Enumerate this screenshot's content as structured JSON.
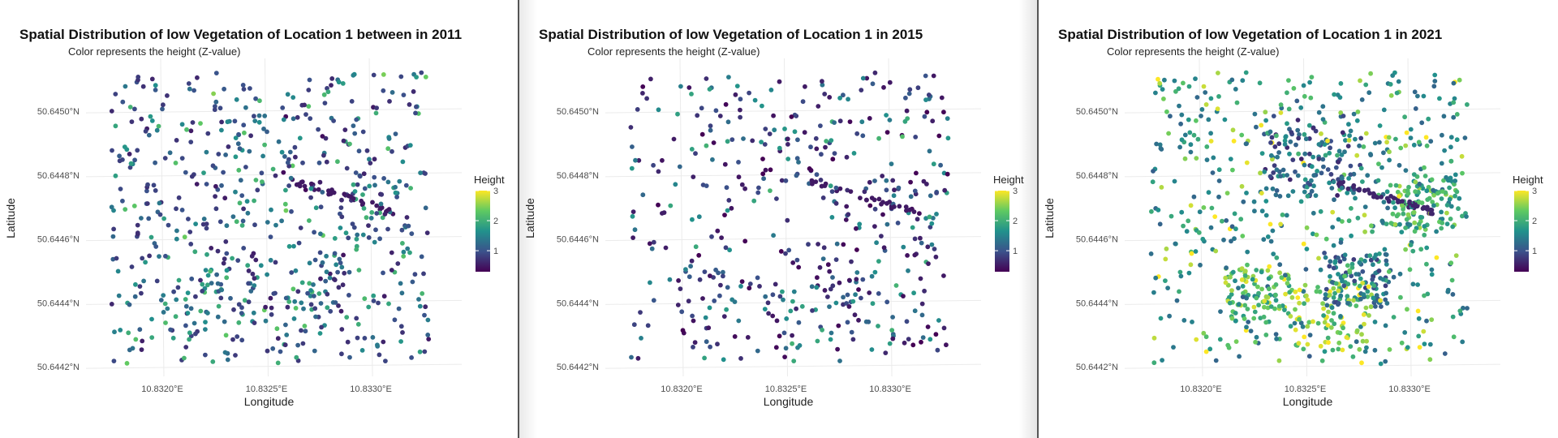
{
  "chart_data": [
    {
      "type": "scatter",
      "title": "Spatial Distribution of low Vegetation of Location 1 between in 2011",
      "subtitle": "Color represents the height (Z-value)",
      "xlabel": "Longitude",
      "ylabel": "Latitude",
      "x_ticks": [
        "10.8320°E",
        "10.8325°E",
        "10.8330°E"
      ],
      "y_ticks": [
        "50.6450°N",
        "50.6448°N",
        "50.6446°N",
        "50.6444°N",
        "50.6442°N"
      ],
      "legend": {
        "title": "Height",
        "ticks": [
          "3",
          "2",
          "1"
        ],
        "placement": "right"
      },
      "grid": true,
      "xlim": [
        10.83165,
        10.83342
      ],
      "ylim": [
        50.64418,
        50.64515
      ],
      "colormap": [
        "#440154",
        "#3b528b",
        "#21918c",
        "#5ec962",
        "#fde725"
      ],
      "color_range": [
        0.3,
        3.0
      ],
      "point_count": 700
    },
    {
      "type": "scatter",
      "title": "Spatial Distribution of low Vegetation of Location 1 in 2015",
      "subtitle": "Color represents the height (Z-value)",
      "xlabel": "Longitude",
      "ylabel": "Latitude",
      "x_ticks": [
        "10.8320°E",
        "10.8325°E",
        "10.8330°E"
      ],
      "y_ticks": [
        "50.6450°N",
        "50.6448°N",
        "50.6446°N",
        "50.6444°N",
        "50.6442°N"
      ],
      "legend": {
        "title": "Height",
        "ticks": [
          "3",
          "2",
          "1"
        ],
        "placement": "right"
      },
      "grid": true,
      "xlim": [
        10.83165,
        10.83342
      ],
      "ylim": [
        50.64418,
        50.64515
      ],
      "colormap": [
        "#440154",
        "#3b528b",
        "#21918c",
        "#5ec962",
        "#fde725"
      ],
      "color_range": [
        0.3,
        3.0
      ],
      "point_count": 500
    },
    {
      "type": "scatter",
      "title": "Spatial Distribution of low Vegetation of Location 1 in 2021",
      "subtitle": "Color represents the height (Z-value)",
      "xlabel": "Longitude",
      "ylabel": "Latitude",
      "x_ticks": [
        "10.8320°E",
        "10.8325°E",
        "10.8330°E"
      ],
      "y_ticks": [
        "50.6450°N",
        "50.6448°N",
        "50.6446°N",
        "50.6444°N",
        "50.6442°N"
      ],
      "legend": {
        "title": "Height",
        "ticks": [
          "3",
          "2",
          "1"
        ],
        "placement": "right"
      },
      "grid": true,
      "xlim": [
        10.83165,
        10.83342
      ],
      "ylim": [
        50.64418,
        50.64515
      ],
      "colormap": [
        "#440154",
        "#3b528b",
        "#21918c",
        "#5ec962",
        "#fde725"
      ],
      "color_range": [
        0.3,
        3.0
      ],
      "point_count": 1100
    }
  ]
}
